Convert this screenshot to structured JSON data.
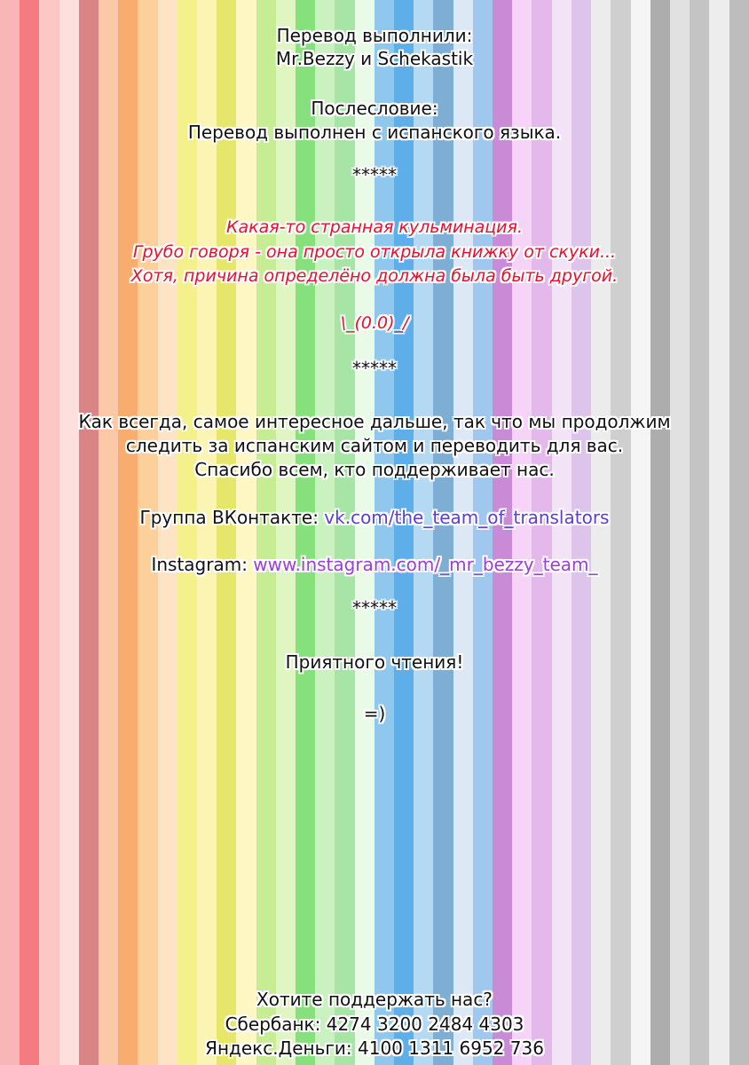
{
  "colors": {
    "stripes": [
      "#f9b6b6",
      "#f47b80",
      "#fcc7c5",
      "#fde0dd",
      "#d98585",
      "#fbc9a8",
      "#f8ad6f",
      "#fccf9b",
      "#fde4c4",
      "#f4f08a",
      "#fbf4b3",
      "#e6e66a",
      "#fef7c4",
      "#c6ec94",
      "#dff6c2",
      "#86e07b",
      "#c9f2c0",
      "#a6e5a5",
      "#e9fbe7",
      "#8fc8ec",
      "#5eaeea",
      "#b4daf3",
      "#7eaed3",
      "#dde8f7",
      "#a0c8ee",
      "#c98ad6",
      "#f6d4f7",
      "#e3b9ec",
      "#f2e4f6",
      "#dcc4ea",
      "#ececec",
      "#cfcfcf",
      "#f5f5f5",
      "#adadad",
      "#e1e1e1",
      "#c4c4c4",
      "#ededed",
      "#bdbdbd"
    ],
    "accent_red": "#e8112d",
    "link_vk": "#5b3fd6",
    "link_ig": "#9b3fd6"
  },
  "credits": {
    "heading": "Перевод выполнили:",
    "names": "Mr.Bezzy и Schekastik"
  },
  "afterword": {
    "heading": "Послесловие:",
    "text": "Перевод выполнен с испанского языка."
  },
  "separator_1": "*****",
  "comment": {
    "line1": "Какая-то странная кульминация.",
    "line2": "Грубо говоря - она просто открыла книжку от скуки...",
    "line3": "Хотя, причина определёно должна была быть другой."
  },
  "emoticon_shrug": "\\_(0.0)_/",
  "separator_2": "*****",
  "message": {
    "line1": "Как всегда, самое интересное дальше, так что мы продолжим",
    "line2": "следить за испанским сайтом и переводить для вас.",
    "line3": "Спасибо всем, кто поддерживает нас."
  },
  "vk": {
    "label": "Группа ВКонтакте: ",
    "link": "vk.com/the_team_of_translators"
  },
  "instagram": {
    "label": "Instagram: ",
    "link": "www.instagram.com/_mr_bezzy_team_"
  },
  "separator_3": "*****",
  "farewell": "Приятного чтения!",
  "emoticon_smile": "=)",
  "support": {
    "heading": "Хотите поддержать нас?",
    "sberbank": "Сбербанк: 4274 3200 2484 4303",
    "yandex": "Яндекс.Деньги: 4100 1311 6952 736"
  }
}
